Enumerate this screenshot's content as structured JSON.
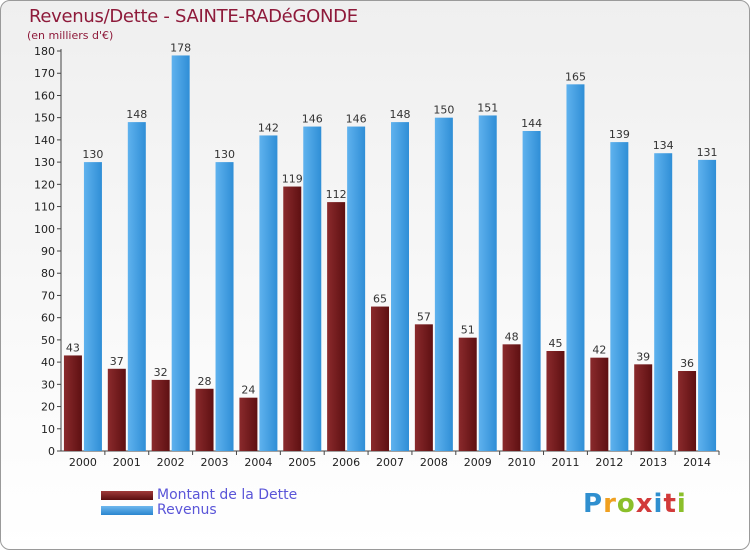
{
  "header": {
    "title": "Revenus/Dette - SAINTE-RADéGONDE",
    "subtitle": "(en milliers d'€)"
  },
  "logo": {
    "text": "Proxiti"
  },
  "colors": {
    "dette": "#7a1a1e",
    "revenus": "#3f9ee3",
    "title": "#8e1a3a",
    "legend_text": "#5a55d8"
  },
  "chart_data": {
    "type": "bar",
    "title": "Revenus/Dette - SAINTE-RADéGONDE",
    "subtitle": "(en milliers d'€)",
    "xlabel": "",
    "ylabel": "",
    "categories": [
      "2000",
      "2001",
      "2002",
      "2003",
      "2004",
      "2005",
      "2006",
      "2007",
      "2008",
      "2009",
      "2010",
      "2011",
      "2012",
      "2013",
      "2014"
    ],
    "series": [
      {
        "name": "Montant de la Dette",
        "values": [
          43,
          37,
          32,
          28,
          24,
          119,
          112,
          65,
          57,
          51,
          48,
          45,
          42,
          39,
          36
        ]
      },
      {
        "name": "Revenus",
        "values": [
          130,
          148,
          178,
          130,
          142,
          146,
          146,
          148,
          150,
          151,
          144,
          165,
          139,
          134,
          131
        ]
      }
    ],
    "ylim": [
      0,
      180
    ],
    "yticks": [
      0,
      10,
      20,
      30,
      40,
      50,
      60,
      70,
      80,
      90,
      100,
      110,
      120,
      130,
      140,
      150,
      160,
      170,
      180
    ],
    "grid": false,
    "legend_position": "bottom-left"
  }
}
